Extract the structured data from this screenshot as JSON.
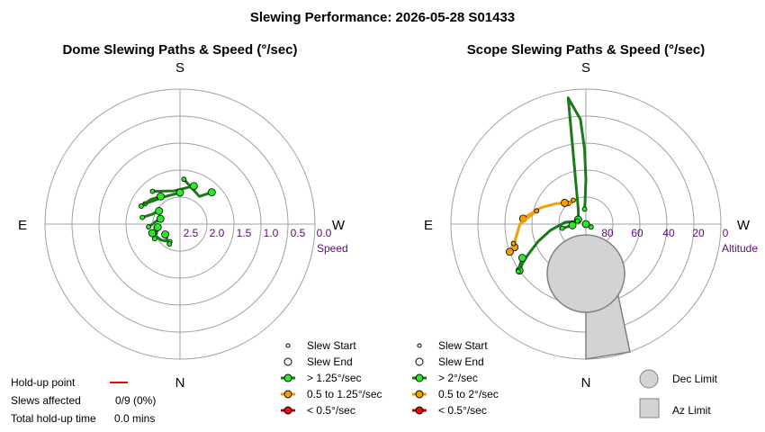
{
  "title": "Slewing Performance: 2026-05-28 S01433",
  "colors": {
    "fast": "#1a7a1a",
    "fast_marker": "#22ee22",
    "medium": "#f0a000",
    "medium_marker": "#f0a000",
    "slow": "#cc0000",
    "slow_marker": "#dd1111",
    "holdup": "#ff0000",
    "ring": "#a0a0a0",
    "limit_fill": "#d3d3d3",
    "limit_stroke": "#808080",
    "tick": "#5a0a78"
  },
  "chart_data": [
    {
      "type": "polar",
      "title": "Dome Slewing Paths & Speed (°/sec)",
      "directions": {
        "top": "S",
        "bottom": "N",
        "left": "E",
        "right": "W"
      },
      "radial_axis": {
        "label": "Speed",
        "ticks": [
          "2.5",
          "2.0",
          "1.5",
          "1.0",
          "0.5",
          "0.0"
        ],
        "center_value": 3.0,
        "edge_value": 0.0
      },
      "legend": [
        {
          "key": "slew-start",
          "label": "Slew Start"
        },
        {
          "key": "slew-end",
          "label": "Slew End"
        },
        {
          "key": "fast",
          "label": "> 1.25°/sec"
        },
        {
          "key": "medium",
          "label": "0.5 to 1.25°/sec"
        },
        {
          "key": "slow",
          "label": "< 0.5°/sec"
        }
      ],
      "slews": [
        {
          "az": [
            185,
            215,
            225
          ],
          "speed": [
            2.0,
            2.25,
            2.0
          ]
        },
        {
          "az": [
            140,
            170,
            200
          ],
          "speed": [
            2.05,
            2.25,
            2.1
          ]
        },
        {
          "az": [
            120,
            150,
            180
          ],
          "speed": [
            2.1,
            2.3,
            2.3
          ]
        },
        {
          "az": [
            115,
            130,
            145
          ],
          "speed": [
            2.05,
            2.15,
            2.25
          ]
        },
        {
          "az": [
            100,
            110,
            122
          ],
          "speed": [
            2.15,
            2.35,
            2.45
          ]
        },
        {
          "az": [
            85,
            95,
            105
          ],
          "speed": [
            2.3,
            2.45,
            2.55
          ]
        },
        {
          "az": [
            60,
            70,
            82
          ],
          "speed": [
            2.35,
            2.45,
            2.5
          ]
        },
        {
          "az": [
            30,
            50,
            72
          ],
          "speed": [
            2.55,
            2.45,
            2.35
          ]
        },
        {
          "az": [
            28,
            40,
            55
          ],
          "speed": [
            2.5,
            2.55,
            2.6
          ]
        }
      ]
    },
    {
      "type": "polar",
      "title": "Scope Slewing Paths & Speed (°/sec)",
      "directions": {
        "top": "S",
        "bottom": "N",
        "left": "E",
        "right": "W"
      },
      "radial_axis": {
        "label": "Altitude",
        "ticks": [
          "80",
          "60",
          "40",
          "20",
          "0"
        ],
        "center_value": 90,
        "edge_value": 0
      },
      "legend": [
        {
          "key": "slew-start",
          "label": "Slew Start"
        },
        {
          "key": "slew-end",
          "label": "Slew End"
        },
        {
          "key": "fast",
          "label": "> 2°/sec"
        },
        {
          "key": "medium",
          "label": "0.5 to 2°/sec"
        },
        {
          "key": "slow",
          "label": "< 0.5°/sec"
        }
      ],
      "limits": [
        {
          "key": "dec",
          "label": "Dec Limit"
        },
        {
          "key": "az",
          "label": "Az Limit"
        }
      ],
      "slews": [
        {
          "class": "fast",
          "az": [
            175,
            178,
            180,
            179,
            177,
            172,
            150,
            120
          ],
          "alt": [
            80,
            75,
            60,
            40,
            20,
            5,
            80,
            84
          ]
        },
        {
          "class": "fast",
          "az": [
            110,
            95,
            80,
            70,
            62,
            58,
            55
          ],
          "alt": [
            84,
            76,
            66,
            56,
            46,
            40,
            36
          ]
        },
        {
          "class": "fast",
          "az": [
            300,
            295,
            285
          ],
          "alt": [
            86,
            88,
            90
          ]
        },
        {
          "class": "medium",
          "az": [
            140,
            125,
            110,
            100,
            95
          ],
          "alt": [
            72,
            66,
            58,
            52,
            48
          ]
        },
        {
          "class": "medium",
          "az": [
            105,
            90,
            78,
            72
          ],
          "alt": [
            56,
            46,
            42,
            40
          ]
        },
        {
          "class": "medium",
          "az": [
            152,
            145,
            135
          ],
          "alt": [
            72,
            73,
            70
          ]
        },
        {
          "class": "medium",
          "az": [
            75,
            72,
            70
          ],
          "alt": [
            40,
            38,
            36
          ]
        },
        {
          "class": "fast",
          "az": [
            55,
            58,
            62
          ],
          "alt": [
            35,
            38,
            42
          ]
        },
        {
          "class": "fast",
          "az": [
            80,
            82,
            85
          ],
          "alt": [
            74,
            78,
            81
          ]
        }
      ]
    }
  ],
  "holdup": {
    "point_label": "Hold-up point",
    "slews_affected_label": "Slews affected",
    "slews_affected_value": "0/9 (0%)",
    "total_label": "Total hold-up time",
    "total_value": "0.0 mins"
  }
}
